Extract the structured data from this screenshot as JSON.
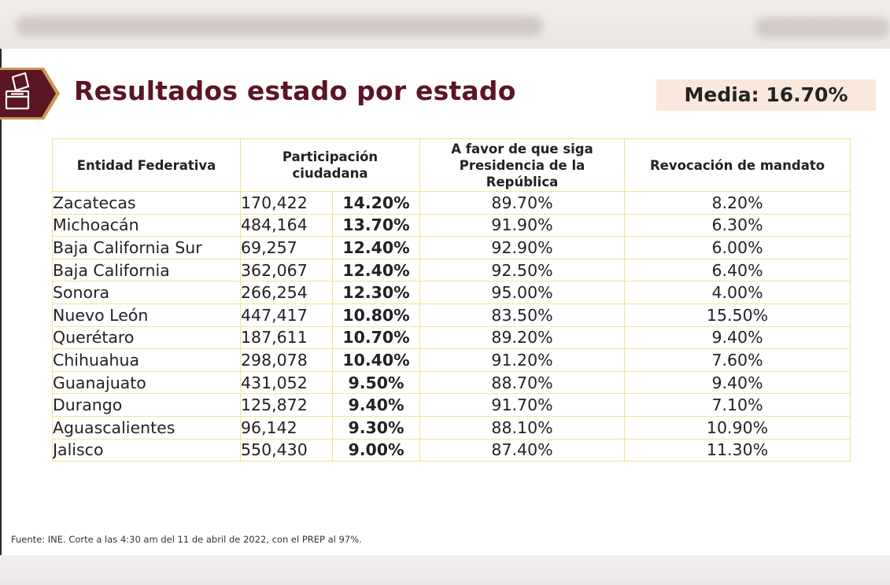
{
  "title": "Resultados estado por estado",
  "media": "Media: 16.70%",
  "table": {
    "headers": {
      "entidad": "Entidad Federativa",
      "participacion": "Participación ciudadana",
      "favor": "A favor de que siga Presidencia de la República",
      "revocacion": "Revocación de mandato"
    },
    "rows": [
      {
        "entidad": "Zacatecas",
        "votos": "170,422",
        "participacion": "14.20%",
        "favor": "89.70%",
        "revocacion": "8.20%"
      },
      {
        "entidad": "Michoacán",
        "votos": "484,164",
        "participacion": "13.70%",
        "favor": "91.90%",
        "revocacion": "6.30%"
      },
      {
        "entidad": "Baja California Sur",
        "votos": "69,257",
        "participacion": "12.40%",
        "favor": "92.90%",
        "revocacion": "6.00%"
      },
      {
        "entidad": "Baja California",
        "votos": "362,067",
        "participacion": "12.40%",
        "favor": "92.50%",
        "revocacion": "6.40%"
      },
      {
        "entidad": "Sonora",
        "votos": "266,254",
        "participacion": "12.30%",
        "favor": "95.00%",
        "revocacion": "4.00%"
      },
      {
        "entidad": "Nuevo León",
        "votos": "447,417",
        "participacion": "10.80%",
        "favor": "83.50%",
        "revocacion": "15.50%"
      },
      {
        "entidad": "Querétaro",
        "votos": "187,611",
        "participacion": "10.70%",
        "favor": "89.20%",
        "revocacion": "9.40%"
      },
      {
        "entidad": "Chihuahua",
        "votos": "298,078",
        "participacion": "10.40%",
        "favor": "91.20%",
        "revocacion": "7.60%"
      },
      {
        "entidad": "Guanajuato",
        "votos": "431,052",
        "participacion": "9.50%",
        "favor": "88.70%",
        "revocacion": "9.40%"
      },
      {
        "entidad": "Durango",
        "votos": "125,872",
        "participacion": "9.40%",
        "favor": "91.70%",
        "revocacion": "7.10%"
      },
      {
        "entidad": "Aguascalientes",
        "votos": "96,142",
        "participacion": "9.30%",
        "favor": "88.10%",
        "revocacion": "10.90%"
      },
      {
        "entidad": "Jalisco",
        "votos": "550,430",
        "participacion": "9.00%",
        "favor": "87.40%",
        "revocacion": "11.30%"
      }
    ]
  },
  "fuente": "Fuente: INE. Corte a las 4:30 am del 11 de abril de 2022, con el PREP al 97%.",
  "colors": {
    "title": "#5b1523",
    "media_bg": "#fbe8dc",
    "border": "#f3e48d",
    "logo": "#5b1523",
    "logo_accent": "#c79a5a"
  },
  "icons": {
    "logo": "ballot-box-icon"
  }
}
